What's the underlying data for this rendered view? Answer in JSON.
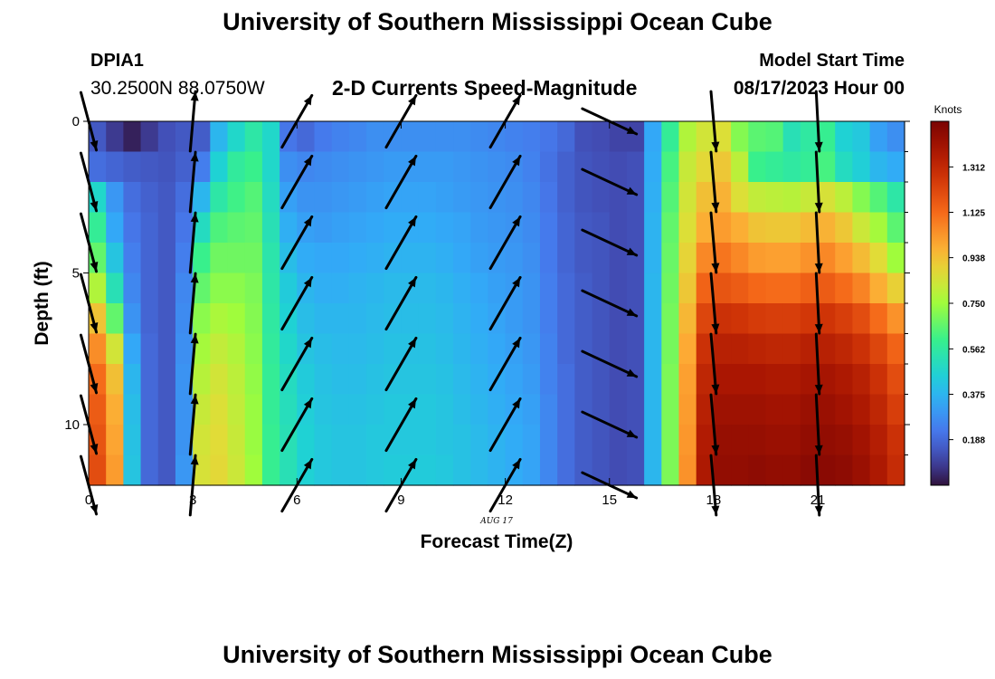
{
  "header": {
    "title": "University of Southern Mississippi Ocean Cube",
    "station_id": "DPIA1",
    "station_coords": "30.2500N  88.0750W",
    "subtitle": "2-D Currents Speed-Magnitude",
    "model_label": "Model Start Time",
    "model_start": "08/17/2023 Hour 00"
  },
  "footer": {
    "title": "University of Southern Mississippi Ocean Cube"
  },
  "chart_data": {
    "type": "heatmap",
    "title": "2-D Currents Speed-Magnitude",
    "xlabel": "Forecast Time(Z)",
    "ylabel": "Depth (ft)",
    "date_label": "AUG 17",
    "x_ticks": [
      "0",
      "3",
      "6",
      "9",
      "12",
      "15",
      "18",
      "21"
    ],
    "x_tick_values": [
      0,
      3,
      6,
      9,
      12,
      15,
      18,
      21
    ],
    "y_ticks": [
      "0",
      "5",
      "10"
    ],
    "y_tick_values": [
      0,
      5,
      10
    ],
    "xlim": [
      0,
      23.5
    ],
    "ylim": [
      0,
      12
    ],
    "colorbar": {
      "label": "Knots",
      "ticks": [
        "0.188",
        "0.375",
        "0.562",
        "0.750",
        "0.938",
        "1.125",
        "1.312"
      ],
      "tick_values": [
        0.188,
        0.375,
        0.562,
        0.75,
        0.938,
        1.125,
        1.312
      ],
      "range": [
        0,
        1.5
      ]
    },
    "hours": [
      0,
      0.5,
      1,
      1.5,
      2,
      2.5,
      3,
      3.5,
      4,
      4.5,
      5,
      5.5,
      6,
      6.5,
      7,
      7.5,
      8,
      8.5,
      9,
      9.5,
      10,
      10.5,
      11,
      11.5,
      12,
      12.5,
      13,
      13.5,
      14,
      14.5,
      15,
      15.5,
      16,
      16.5,
      17,
      17.5,
      18,
      18.5,
      19,
      19.5,
      20,
      20.5,
      21,
      21.5,
      22,
      22.5,
      23
    ],
    "depths": [
      0,
      1,
      2,
      3,
      4,
      5,
      6,
      7,
      8,
      9,
      10,
      11
    ],
    "speed": [
      [
        0.15,
        0.08,
        0.03,
        0.08,
        0.13,
        0.15,
        0.16,
        0.38,
        0.48,
        0.55,
        0.48,
        0.22,
        0.19,
        0.23,
        0.25,
        0.26,
        0.28,
        0.28,
        0.28,
        0.28,
        0.28,
        0.28,
        0.27,
        0.26,
        0.25,
        0.24,
        0.22,
        0.19,
        0.13,
        0.12,
        0.1,
        0.1,
        0.34,
        0.58,
        0.78,
        0.84,
        0.86,
        0.71,
        0.65,
        0.64,
        0.52,
        0.56,
        0.59,
        0.46,
        0.43,
        0.32,
        0.28
      ],
      [
        0.2,
        0.18,
        0.16,
        0.15,
        0.14,
        0.17,
        0.24,
        0.46,
        0.57,
        0.6,
        0.48,
        0.28,
        0.26,
        0.27,
        0.28,
        0.29,
        0.3,
        0.31,
        0.31,
        0.31,
        0.31,
        0.3,
        0.29,
        0.28,
        0.27,
        0.25,
        0.21,
        0.17,
        0.14,
        0.13,
        0.12,
        0.13,
        0.35,
        0.62,
        0.82,
        0.88,
        0.92,
        0.8,
        0.6,
        0.58,
        0.56,
        0.58,
        0.62,
        0.5,
        0.45,
        0.38,
        0.35
      ],
      [
        0.48,
        0.3,
        0.2,
        0.17,
        0.15,
        0.2,
        0.38,
        0.55,
        0.61,
        0.64,
        0.5,
        0.32,
        0.29,
        0.29,
        0.3,
        0.31,
        0.32,
        0.33,
        0.33,
        0.33,
        0.32,
        0.31,
        0.3,
        0.29,
        0.28,
        0.26,
        0.22,
        0.17,
        0.14,
        0.13,
        0.12,
        0.13,
        0.36,
        0.64,
        0.84,
        0.94,
        0.97,
        0.86,
        0.81,
        0.8,
        0.79,
        0.82,
        0.85,
        0.8,
        0.71,
        0.64,
        0.55
      ],
      [
        0.58,
        0.34,
        0.22,
        0.18,
        0.15,
        0.22,
        0.5,
        0.63,
        0.65,
        0.66,
        0.52,
        0.36,
        0.32,
        0.31,
        0.32,
        0.33,
        0.34,
        0.35,
        0.35,
        0.35,
        0.34,
        0.33,
        0.31,
        0.3,
        0.29,
        0.27,
        0.23,
        0.18,
        0.15,
        0.14,
        0.12,
        0.13,
        0.37,
        0.66,
        0.86,
        0.98,
        1.02,
        0.98,
        0.93,
        0.92,
        0.92,
        0.95,
        0.97,
        0.92,
        0.83,
        0.76,
        0.65
      ],
      [
        0.66,
        0.42,
        0.24,
        0.18,
        0.15,
        0.24,
        0.6,
        0.68,
        0.68,
        0.68,
        0.54,
        0.4,
        0.35,
        0.34,
        0.34,
        0.35,
        0.36,
        0.37,
        0.37,
        0.37,
        0.36,
        0.34,
        0.32,
        0.31,
        0.3,
        0.28,
        0.23,
        0.18,
        0.15,
        0.14,
        0.12,
        0.13,
        0.37,
        0.67,
        0.89,
        1.06,
        1.1,
        1.06,
        1.02,
        1.01,
        1.01,
        1.04,
        1.06,
        1.01,
        0.95,
        0.87,
        0.75
      ],
      [
        0.78,
        0.52,
        0.26,
        0.18,
        0.15,
        0.26,
        0.66,
        0.72,
        0.72,
        0.7,
        0.55,
        0.44,
        0.38,
        0.36,
        0.36,
        0.37,
        0.38,
        0.39,
        0.39,
        0.39,
        0.38,
        0.36,
        0.34,
        0.32,
        0.31,
        0.29,
        0.24,
        0.19,
        0.16,
        0.14,
        0.12,
        0.13,
        0.38,
        0.68,
        0.92,
        1.14,
        1.18,
        1.16,
        1.13,
        1.12,
        1.12,
        1.15,
        1.16,
        1.12,
        1.07,
        0.98,
        0.9
      ],
      [
        0.93,
        0.66,
        0.29,
        0.18,
        0.15,
        0.27,
        0.72,
        0.77,
        0.75,
        0.71,
        0.56,
        0.46,
        0.4,
        0.38,
        0.38,
        0.38,
        0.39,
        0.4,
        0.4,
        0.4,
        0.39,
        0.37,
        0.35,
        0.33,
        0.31,
        0.29,
        0.24,
        0.19,
        0.16,
        0.14,
        0.12,
        0.13,
        0.38,
        0.69,
        0.96,
        1.22,
        1.28,
        1.27,
        1.25,
        1.24,
        1.24,
        1.26,
        1.27,
        1.24,
        1.2,
        1.12,
        1.04
      ],
      [
        1.05,
        0.84,
        0.34,
        0.19,
        0.15,
        0.28,
        0.76,
        0.81,
        0.78,
        0.72,
        0.57,
        0.48,
        0.42,
        0.4,
        0.39,
        0.39,
        0.4,
        0.41,
        0.41,
        0.41,
        0.4,
        0.38,
        0.36,
        0.34,
        0.32,
        0.3,
        0.25,
        0.19,
        0.16,
        0.14,
        0.12,
        0.13,
        0.38,
        0.69,
        0.99,
        1.28,
        1.34,
        1.34,
        1.33,
        1.32,
        1.32,
        1.34,
        1.34,
        1.32,
        1.28,
        1.22,
        1.14
      ],
      [
        1.12,
        0.94,
        0.38,
        0.19,
        0.15,
        0.29,
        0.79,
        0.84,
        0.8,
        0.73,
        0.58,
        0.5,
        0.44,
        0.41,
        0.4,
        0.4,
        0.41,
        0.42,
        0.42,
        0.42,
        0.41,
        0.39,
        0.37,
        0.35,
        0.33,
        0.31,
        0.25,
        0.2,
        0.16,
        0.14,
        0.12,
        0.13,
        0.38,
        0.7,
        1.01,
        1.32,
        1.38,
        1.38,
        1.38,
        1.37,
        1.37,
        1.39,
        1.39,
        1.37,
        1.34,
        1.28,
        1.2
      ],
      [
        1.16,
        0.98,
        0.4,
        0.19,
        0.15,
        0.29,
        0.82,
        0.86,
        0.81,
        0.74,
        0.58,
        0.51,
        0.45,
        0.42,
        0.41,
        0.41,
        0.42,
        0.43,
        0.43,
        0.43,
        0.42,
        0.4,
        0.38,
        0.36,
        0.34,
        0.32,
        0.26,
        0.2,
        0.16,
        0.14,
        0.12,
        0.13,
        0.38,
        0.7,
        1.02,
        1.34,
        1.41,
        1.41,
        1.41,
        1.4,
        1.4,
        1.42,
        1.42,
        1.4,
        1.37,
        1.32,
        1.24
      ],
      [
        1.18,
        1.0,
        0.41,
        0.19,
        0.15,
        0.29,
        0.84,
        0.87,
        0.82,
        0.74,
        0.59,
        0.52,
        0.46,
        0.43,
        0.42,
        0.42,
        0.43,
        0.43,
        0.43,
        0.43,
        0.42,
        0.41,
        0.39,
        0.37,
        0.35,
        0.33,
        0.26,
        0.2,
        0.16,
        0.14,
        0.12,
        0.13,
        0.38,
        0.7,
        1.03,
        1.36,
        1.43,
        1.43,
        1.43,
        1.42,
        1.42,
        1.44,
        1.44,
        1.43,
        1.4,
        1.35,
        1.28
      ],
      [
        1.2,
        1.02,
        0.42,
        0.19,
        0.15,
        0.3,
        0.85,
        0.88,
        0.83,
        0.75,
        0.59,
        0.52,
        0.46,
        0.43,
        0.42,
        0.42,
        0.43,
        0.44,
        0.44,
        0.44,
        0.43,
        0.41,
        0.39,
        0.37,
        0.35,
        0.33,
        0.26,
        0.2,
        0.16,
        0.14,
        0.12,
        0.13,
        0.38,
        0.7,
        1.04,
        1.37,
        1.44,
        1.44,
        1.45,
        1.44,
        1.44,
        1.46,
        1.46,
        1.45,
        1.42,
        1.37,
        1.3
      ]
    ],
    "vectors": {
      "hours": [
        0,
        3,
        6,
        9,
        12,
        15,
        18,
        21
      ],
      "depths": [
        0,
        2,
        4,
        6,
        8,
        10,
        12
      ],
      "direction_deg": [
        [
          165,
          5,
          30,
          30,
          30,
          115,
          175,
          177
        ],
        [
          165,
          5,
          30,
          30,
          30,
          115,
          175,
          177
        ],
        [
          165,
          5,
          30,
          30,
          30,
          115,
          175,
          177
        ],
        [
          165,
          5,
          30,
          30,
          30,
          115,
          175,
          177
        ],
        [
          165,
          5,
          30,
          30,
          30,
          115,
          175,
          177
        ],
        [
          165,
          5,
          30,
          30,
          30,
          115,
          175,
          177
        ],
        [
          165,
          5,
          30,
          30,
          30,
          115,
          175,
          177
        ]
      ]
    }
  }
}
